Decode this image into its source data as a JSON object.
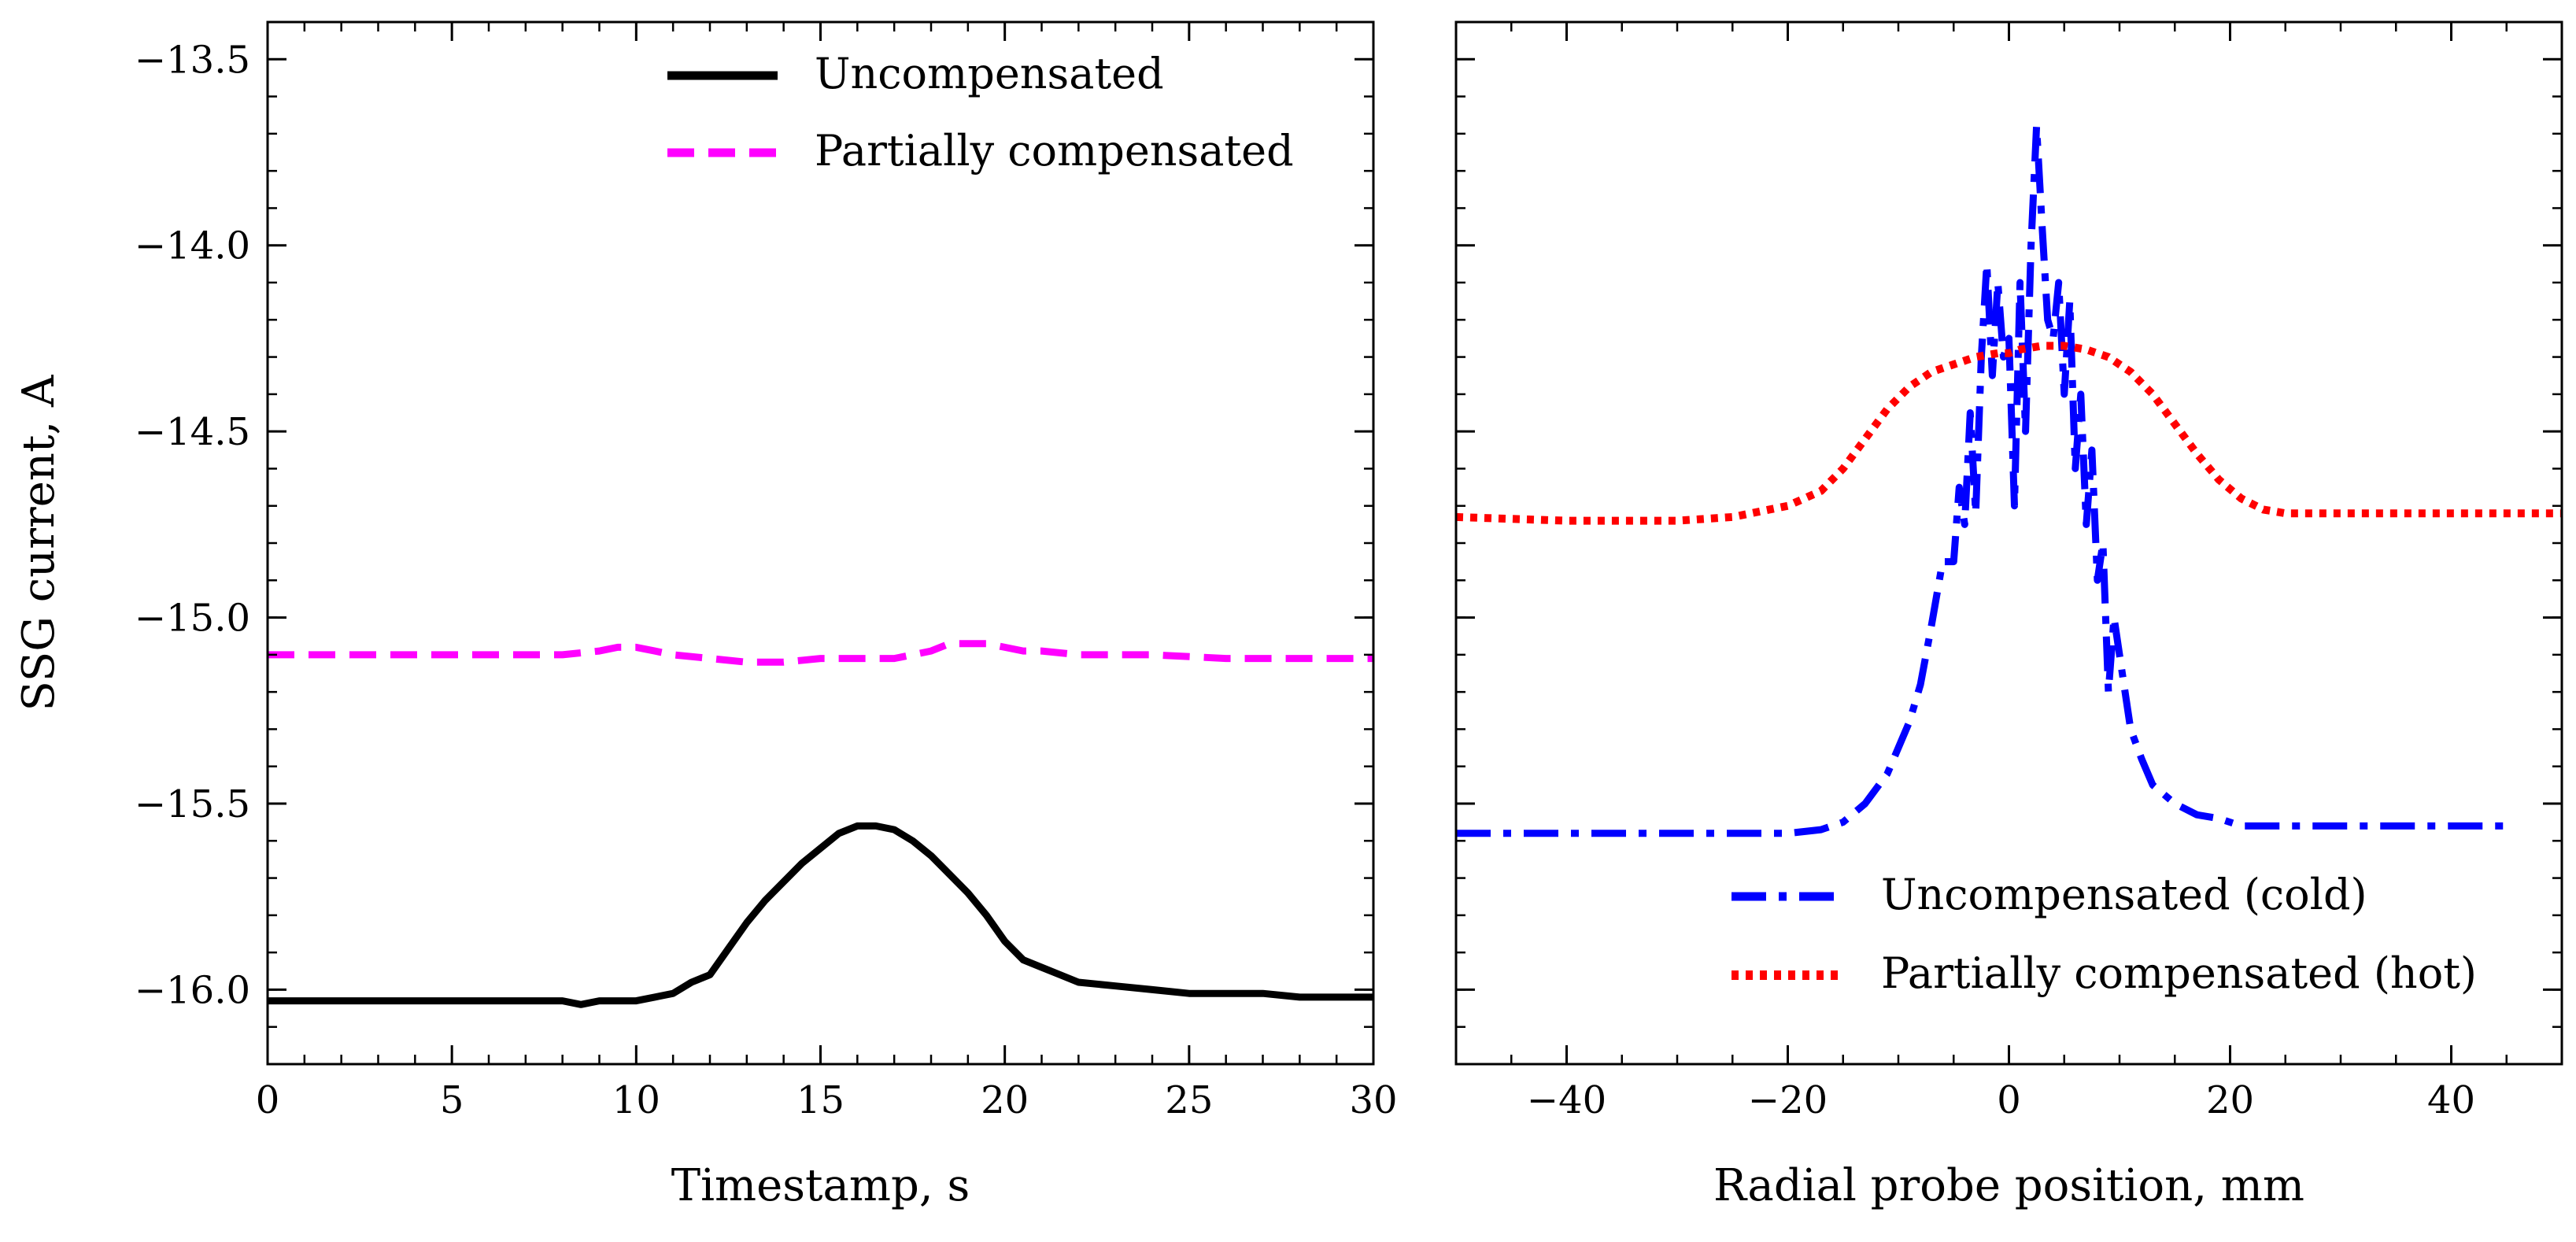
{
  "chart_data": [
    {
      "type": "line",
      "xlabel": "Timestamp, s",
      "ylabel": "SSG current, A",
      "xlim": [
        0,
        30
      ],
      "ylim": [
        -16.2,
        -13.4
      ],
      "xticks": [
        0,
        5,
        10,
        15,
        20,
        25,
        30
      ],
      "xtick_labels": [
        "0",
        "5",
        "10",
        "15",
        "20",
        "25",
        "30"
      ],
      "yticks": [
        -13.5,
        -14.0,
        -14.5,
        -15.0,
        -15.5,
        -16.0
      ],
      "ytick_labels": [
        "−13.5",
        "−14.0",
        "−14.5",
        "−15.0",
        "−15.5",
        "−16.0"
      ],
      "legend": {
        "position": "top-center"
      },
      "series": [
        {
          "name": "Uncompensated",
          "color": "#000000",
          "style": "solid",
          "x": [
            0,
            1,
            2,
            3,
            4,
            5,
            6,
            7,
            8,
            8.5,
            9,
            10,
            10.5,
            11,
            11.5,
            12,
            12.5,
            13,
            13.5,
            14,
            14.5,
            15,
            15.5,
            16,
            16.5,
            17,
            17.5,
            18,
            18.5,
            19,
            19.5,
            20,
            20.5,
            21,
            21.5,
            22,
            23,
            24,
            25,
            26,
            27,
            28,
            29,
            30
          ],
          "values": [
            -16.03,
            -16.03,
            -16.03,
            -16.03,
            -16.03,
            -16.03,
            -16.03,
            -16.03,
            -16.03,
            -16.04,
            -16.03,
            -16.03,
            -16.02,
            -16.01,
            -15.98,
            -15.96,
            -15.89,
            -15.82,
            -15.76,
            -15.71,
            -15.66,
            -15.62,
            -15.58,
            -15.56,
            -15.56,
            -15.57,
            -15.6,
            -15.64,
            -15.69,
            -15.74,
            -15.8,
            -15.87,
            -15.92,
            -15.94,
            -15.96,
            -15.98,
            -15.99,
            -16.0,
            -16.01,
            -16.01,
            -16.01,
            -16.02,
            -16.02,
            -16.02
          ]
        },
        {
          "name": "Partially compensated",
          "color": "#ff00ff",
          "style": "dashed",
          "x": [
            0,
            2,
            4,
            6,
            8,
            9,
            9.5,
            10,
            10.5,
            11,
            12,
            13,
            13.5,
            14,
            15,
            16,
            17,
            17.5,
            18,
            18.5,
            19,
            19.5,
            20,
            20.5,
            21,
            22,
            24,
            26,
            28,
            30
          ],
          "values": [
            -15.1,
            -15.1,
            -15.1,
            -15.1,
            -15.1,
            -15.09,
            -15.08,
            -15.08,
            -15.09,
            -15.1,
            -15.11,
            -15.12,
            -15.12,
            -15.12,
            -15.11,
            -15.11,
            -15.11,
            -15.1,
            -15.09,
            -15.07,
            -15.07,
            -15.07,
            -15.08,
            -15.09,
            -15.09,
            -15.1,
            -15.1,
            -15.11,
            -15.11,
            -15.11
          ]
        }
      ]
    },
    {
      "type": "line",
      "xlabel": "Radial probe position, mm",
      "ylabel": "",
      "xlim": [
        -50,
        50
      ],
      "ylim": [
        -16.2,
        -13.4
      ],
      "xticks": [
        -40,
        -20,
        0,
        20,
        40
      ],
      "xtick_labels": [
        "−40",
        "−20",
        "0",
        "20",
        "40"
      ],
      "yticks": [
        -13.5,
        -14.0,
        -14.5,
        -15.0,
        -15.5,
        -16.0
      ],
      "legend": {
        "position": "bottom-right"
      },
      "series": [
        {
          "name": "Uncompensated (cold)",
          "color": "#0000ff",
          "style": "dashdot",
          "x": [
            -50,
            -45,
            -40,
            -35,
            -30,
            -25,
            -20,
            -17,
            -15,
            -13,
            -11,
            -9,
            -8,
            -7,
            -6,
            -5,
            -4.5,
            -4,
            -3.5,
            -3,
            -2.5,
            -2,
            -1.5,
            -1,
            -0.5,
            0,
            0.5,
            1,
            1.5,
            2,
            2.5,
            3,
            3.5,
            4,
            4.5,
            5,
            5.5,
            6,
            6.5,
            7,
            7.5,
            8,
            8.5,
            9,
            9.5,
            10,
            11,
            12,
            13,
            15,
            17,
            19,
            21,
            25,
            30,
            35,
            40,
            45
          ],
          "values": [
            -15.58,
            -15.58,
            -15.58,
            -15.58,
            -15.58,
            -15.58,
            -15.58,
            -15.57,
            -15.55,
            -15.5,
            -15.42,
            -15.28,
            -15.18,
            -15.02,
            -14.85,
            -14.85,
            -14.65,
            -14.75,
            -14.45,
            -14.72,
            -14.3,
            -14.05,
            -14.35,
            -14.1,
            -14.3,
            -14.25,
            -14.7,
            -14.1,
            -14.5,
            -14.0,
            -13.68,
            -13.95,
            -14.2,
            -14.25,
            -14.1,
            -14.4,
            -14.15,
            -14.6,
            -14.4,
            -14.75,
            -14.55,
            -14.9,
            -14.8,
            -15.2,
            -15.0,
            -15.1,
            -15.3,
            -15.38,
            -15.45,
            -15.5,
            -15.53,
            -15.54,
            -15.56,
            -15.56,
            -15.56,
            -15.56,
            -15.56,
            -15.56
          ]
        },
        {
          "name": "Partially compensated (hot)",
          "color": "#ff0000",
          "style": "dotted",
          "x": [
            -50,
            -40,
            -30,
            -25,
            -20,
            -17,
            -15,
            -13,
            -11,
            -9,
            -7,
            -5,
            -3,
            -1,
            0,
            1,
            3,
            5,
            7,
            9,
            11,
            13,
            15,
            17,
            19,
            21,
            23,
            25,
            30,
            40,
            50
          ],
          "values": [
            -14.73,
            -14.74,
            -14.74,
            -14.73,
            -14.7,
            -14.66,
            -14.6,
            -14.52,
            -14.44,
            -14.38,
            -14.34,
            -14.32,
            -14.3,
            -14.29,
            -14.29,
            -14.28,
            -14.27,
            -14.27,
            -14.28,
            -14.3,
            -14.34,
            -14.4,
            -14.48,
            -14.56,
            -14.63,
            -14.68,
            -14.71,
            -14.72,
            -14.72,
            -14.72,
            -14.72
          ]
        }
      ]
    }
  ]
}
